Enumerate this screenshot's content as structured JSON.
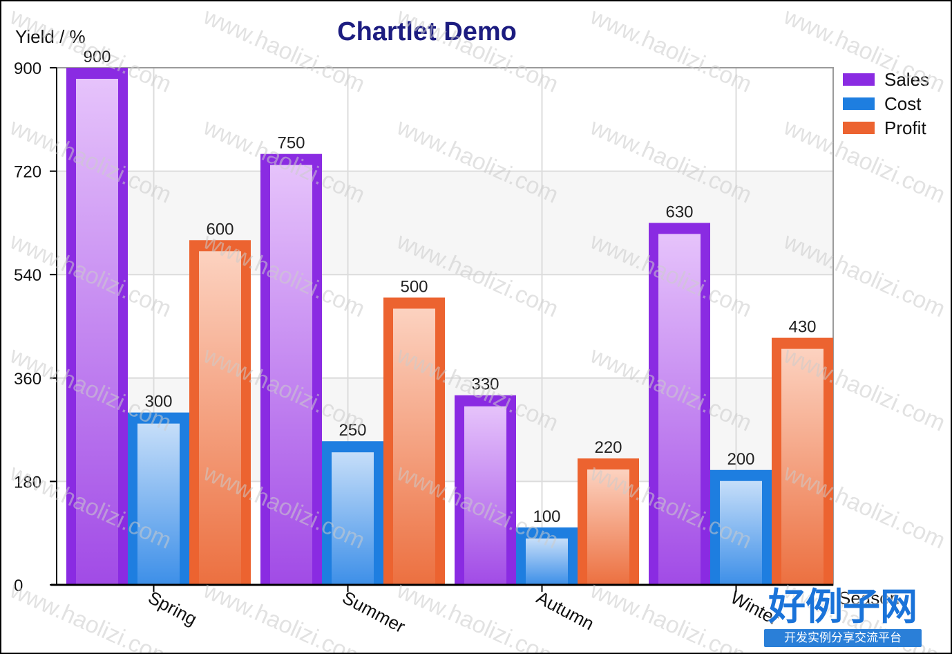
{
  "chart_data": {
    "type": "bar",
    "title": "Chartlet Demo",
    "xlabel": "Season",
    "ylabel": "Yield / %",
    "categories": [
      "Spring",
      "Summer",
      "Autumn",
      "Winter"
    ],
    "series": [
      {
        "name": "Sales",
        "values": [
          900,
          750,
          330,
          630
        ],
        "color": "#8a2be2",
        "fill_light": "#e6c3fb",
        "fill_dark": "#a14be6"
      },
      {
        "name": "Cost",
        "values": [
          300,
          250,
          100,
          200
        ],
        "color": "#1e7ee0",
        "fill_light": "#c6def9",
        "fill_dark": "#3d8fe8"
      },
      {
        "name": "Profit",
        "values": [
          600,
          500,
          220,
          430
        ],
        "color": "#ec6330",
        "fill_light": "#fcd2c0",
        "fill_dark": "#ec7040"
      }
    ],
    "y_ticks": [
      0,
      180,
      360,
      540,
      720,
      900
    ],
    "ylim": [
      0,
      900
    ],
    "grid": true,
    "legend_position": "right",
    "data_labels": true
  },
  "watermark": {
    "text": "www.haolizi.com",
    "logo_title": "好例子网",
    "logo_subtitle": "开发实例分享交流平台"
  }
}
